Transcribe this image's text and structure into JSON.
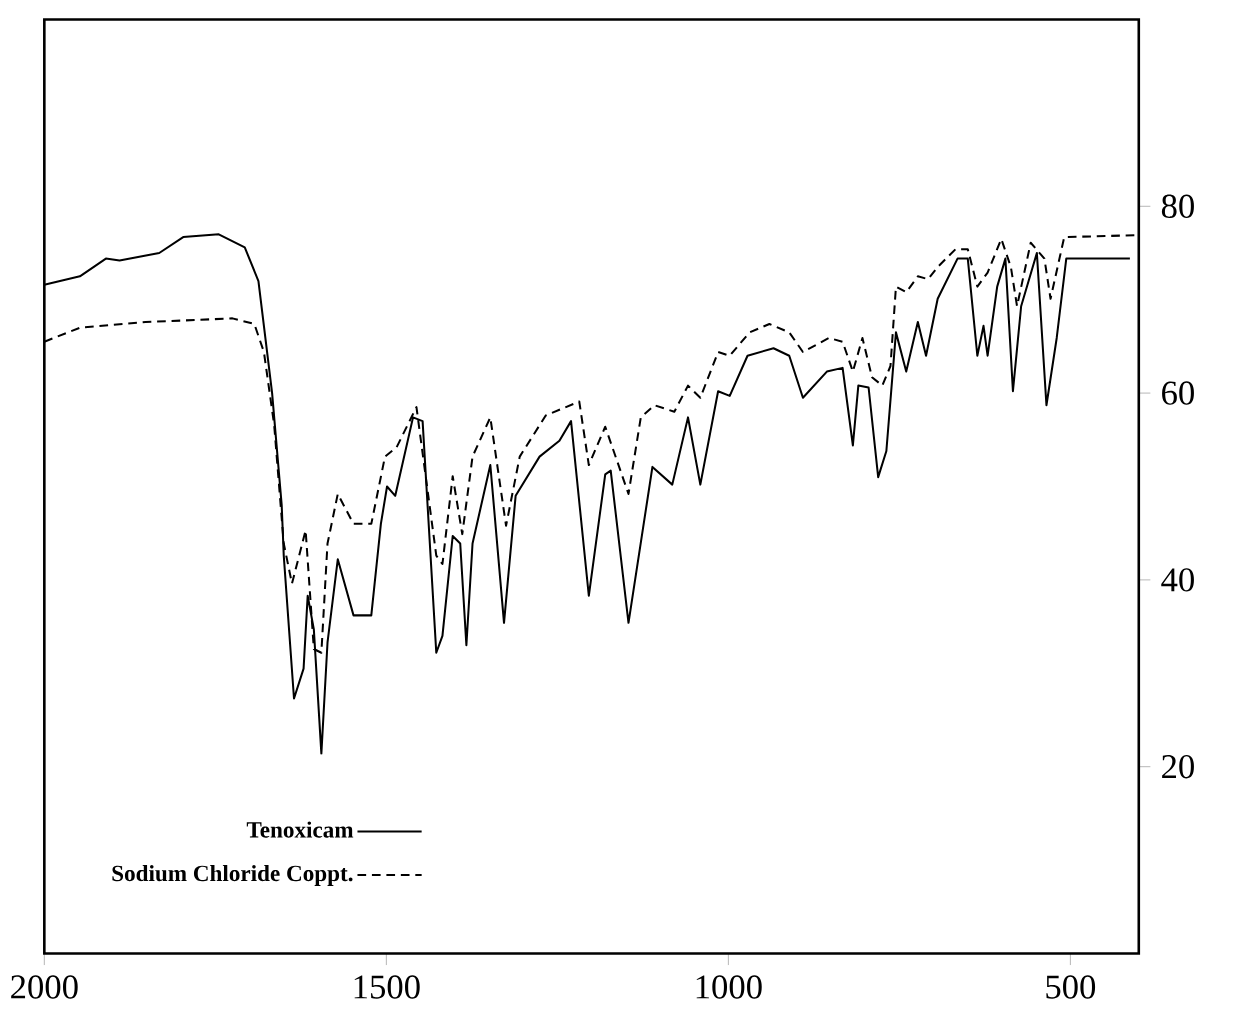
{
  "chart_data": {
    "type": "line",
    "xlim": [
      2000,
      400
    ],
    "ylim": [
      0,
      100
    ],
    "xticks": [
      2000,
      1500,
      1000,
      500
    ],
    "yticks": [
      20,
      40,
      60,
      80
    ],
    "legend": "bottom left",
    "grid": false,
    "marker": "none",
    "series": [
      {
        "name": "Tenoxicam",
        "color": "#000000",
        "line_style": "solid",
        "x": [
          2000,
          1948,
          1910,
          1890,
          1832,
          1797,
          1745,
          1707,
          1687,
          1667,
          1653,
          1650,
          1635,
          1621,
          1615,
          1606,
          1595,
          1586,
          1571,
          1548,
          1522,
          1508,
          1499,
          1487,
          1461,
          1447,
          1427,
          1418,
          1403,
          1392,
          1383,
          1374,
          1348,
          1328,
          1311,
          1276,
          1247,
          1230,
          1204,
          1180,
          1172,
          1146,
          1111,
          1082,
          1059,
          1041,
          1015,
          998,
          972,
          934,
          911,
          891,
          856,
          833,
          818,
          810,
          795,
          781,
          769,
          755,
          740,
          723,
          711,
          694,
          665,
          650,
          636,
          627,
          621,
          607,
          595,
          584,
          572,
          549,
          535,
          520,
          506,
          413
        ],
        "values": [
          71.6,
          72.5,
          74.4,
          74.2,
          75,
          76.7,
          77,
          75.6,
          72,
          60,
          48,
          42.6,
          27.3,
          30.5,
          38.3,
          34.7,
          21.4,
          33.3,
          42.2,
          36.2,
          36.2,
          46,
          50,
          49,
          57.4,
          57,
          32.2,
          34,
          44.7,
          43.9,
          33,
          43.9,
          52.3,
          35.4,
          49,
          53.2,
          54.9,
          57,
          38.3,
          51.3,
          51.7,
          35.4,
          52.1,
          50.2,
          57.4,
          50.2,
          60.2,
          59.7,
          64,
          64.8,
          64,
          59.5,
          62.3,
          62.7,
          54.4,
          60.8,
          60.6,
          51,
          53.8,
          66.5,
          62.3,
          67.6,
          64,
          70.1,
          74.4,
          74.4,
          64,
          67.2,
          64,
          71.4,
          74.4,
          60.2,
          69.3,
          75,
          58.7,
          65.9,
          74.4,
          74.4
        ]
      },
      {
        "name": "Sodium Chloride Coppt.",
        "color": "#000000",
        "line_style": "dashed",
        "x": [
          2000,
          1948,
          1852,
          1725,
          1693,
          1679,
          1664,
          1650,
          1638,
          1618,
          1606,
          1595,
          1586,
          1571,
          1548,
          1522,
          1502,
          1485,
          1456,
          1427,
          1418,
          1403,
          1389,
          1374,
          1348,
          1325,
          1305,
          1267,
          1218,
          1204,
          1180,
          1146,
          1128,
          1108,
          1079,
          1059,
          1041,
          1015,
          998,
          969,
          940,
          911,
          891,
          853,
          833,
          818,
          804,
          790,
          775,
          763,
          755,
          740,
          723,
          708,
          694,
          668,
          650,
          636,
          621,
          601,
          587,
          578,
          558,
          538,
          529,
          509,
          406
        ],
        "values": [
          65.5,
          67,
          67.6,
          68,
          67.4,
          64.4,
          56.6,
          43.9,
          39.6,
          45.3,
          32.6,
          32.2,
          43.9,
          49.2,
          46,
          46,
          53.2,
          54.2,
          58.5,
          42.6,
          41.7,
          51.1,
          44.9,
          53.2,
          57.4,
          45.8,
          53.2,
          57.6,
          59.1,
          52.3,
          56.4,
          49.2,
          57.4,
          58.7,
          58,
          60.8,
          59.5,
          64.4,
          64,
          66.5,
          67.4,
          66.5,
          64.4,
          65.9,
          65.5,
          62.3,
          65.9,
          61.7,
          60.8,
          62.9,
          71.4,
          70.8,
          72.5,
          72.2,
          73.5,
          75.4,
          75.4,
          71.4,
          72.9,
          76.5,
          73.5,
          69.3,
          76.1,
          74.4,
          70.1,
          76.7,
          76.9
        ]
      }
    ]
  }
}
